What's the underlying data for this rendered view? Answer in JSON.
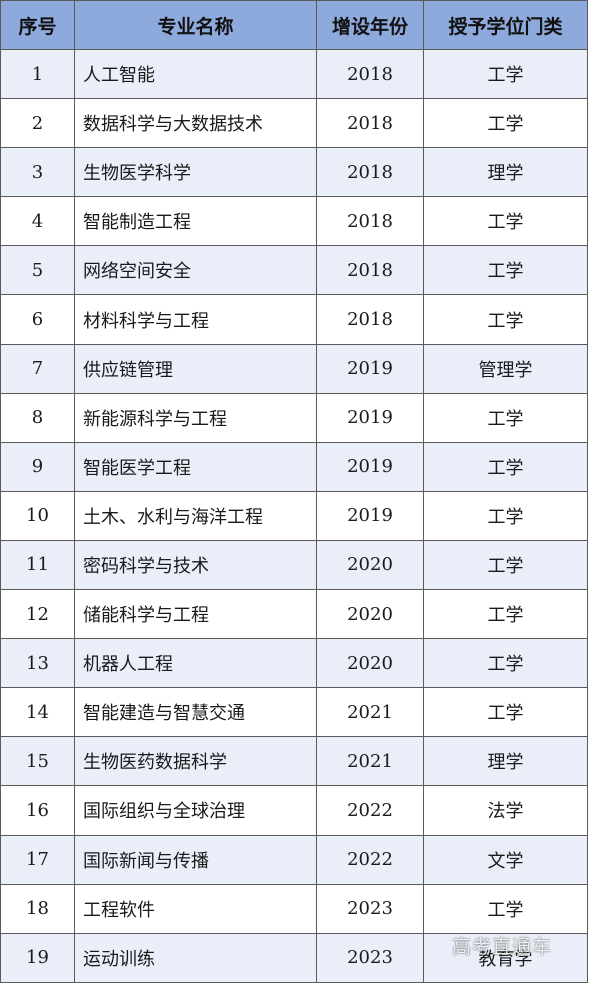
{
  "table": {
    "headers": [
      "序号",
      "专业名称",
      "增设年份",
      "授予学位门类"
    ],
    "rows": [
      [
        "1",
        "人工智能",
        "2018",
        "工学"
      ],
      [
        "2",
        "数据科学与大数据技术",
        "2018",
        "工学"
      ],
      [
        "3",
        "生物医学科学",
        "2018",
        "理学"
      ],
      [
        "4",
        "智能制造工程",
        "2018",
        "工学"
      ],
      [
        "5",
        "网络空间安全",
        "2018",
        "工学"
      ],
      [
        "6",
        "材料科学与工程",
        "2018",
        "工学"
      ],
      [
        "7",
        "供应链管理",
        "2019",
        "管理学"
      ],
      [
        "8",
        "新能源科学与工程",
        "2019",
        "工学"
      ],
      [
        "9",
        "智能医学工程",
        "2019",
        "工学"
      ],
      [
        "10",
        "土木、水利与海洋工程",
        "2019",
        "工学"
      ],
      [
        "11",
        "密码科学与技术",
        "2020",
        "工学"
      ],
      [
        "12",
        "储能科学与工程",
        "2020",
        "工学"
      ],
      [
        "13",
        "机器人工程",
        "2020",
        "工学"
      ],
      [
        "14",
        "智能建造与智慧交通",
        "2021",
        "工学"
      ],
      [
        "15",
        "生物医药数据科学",
        "2021",
        "理学"
      ],
      [
        "16",
        "国际组织与全球治理",
        "2022",
        "法学"
      ],
      [
        "17",
        "国际新闻与传播",
        "2022",
        "文学"
      ],
      [
        "18",
        "工程软件",
        "2023",
        "工学"
      ],
      [
        "19",
        "运动训练",
        "2023",
        "教育学"
      ]
    ]
  },
  "watermark": "高考直通车",
  "colors": {
    "header_bg": "#8ea9db",
    "stripe_bg": "#e9eef8",
    "border": "#5a5a5a"
  }
}
